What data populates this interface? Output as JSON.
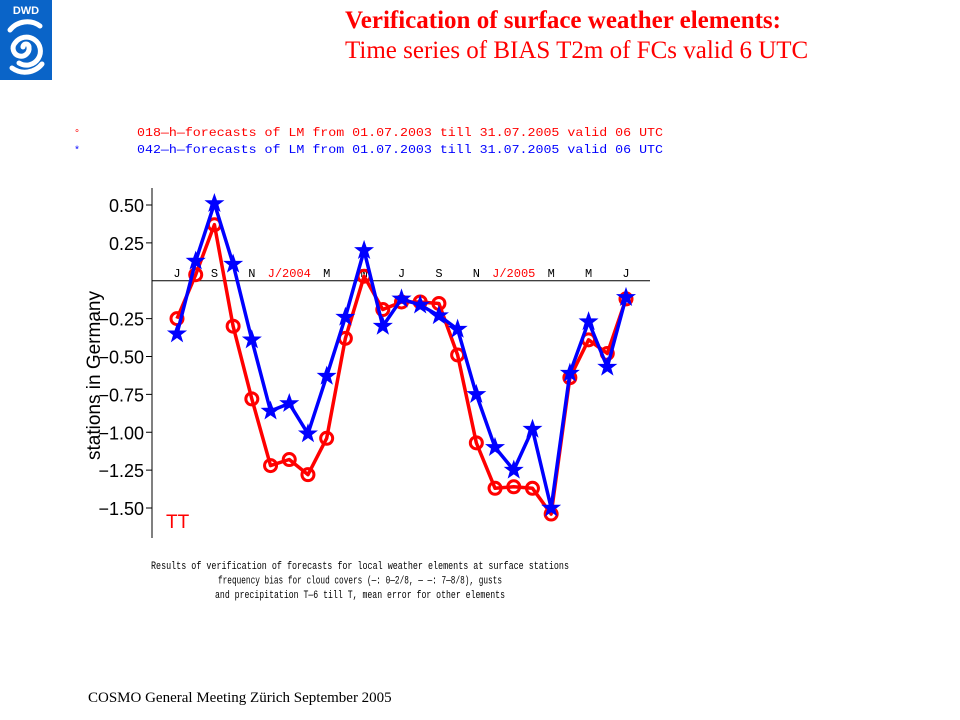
{
  "logo": {
    "text": "DWD"
  },
  "header": {
    "title": "Verification of surface weather elements:",
    "subtitle": "Time series of  BIAS T2m of FCs valid 6 UTC"
  },
  "footer": {
    "text": "COSMO General Meeting  Zürich September 2005"
  },
  "colors": {
    "forecast_018": "#ff0000",
    "forecast_042": "#0000ff",
    "text": "#000000"
  },
  "chart_data": {
    "type": "line",
    "legend": [
      {
        "marker": "°",
        "text": "018—h—forecasts of LM from 01.07.2003 till 31.07.2005 valid 06 UTC",
        "color": "#ff0000"
      },
      {
        "marker": "*",
        "text": "042—h—forecasts of LM from 01.07.2003 till 31.07.2005 valid 06 UTC",
        "color": "#0000ff"
      }
    ],
    "ylabel": "stations  in  Germany",
    "element_label": "TT",
    "ylim": [
      -1.65,
      0.55
    ],
    "yticks": [
      0.5,
      0.25,
      -0.25,
      -0.5,
      -0.75,
      -1.0,
      -1.25,
      -1.5
    ],
    "ytick_labels": [
      "0.50",
      "0.25",
      "−0.25",
      "−0.50",
      "−0.75",
      "−1.00",
      "−1.25",
      "−1.50"
    ],
    "xlim": [
      -0.3,
      24.3
    ],
    "month_labels": [
      {
        "x": 0,
        "label": "J",
        "color": "#000000"
      },
      {
        "x": 2,
        "label": "S",
        "color": "#000000"
      },
      {
        "x": 4,
        "label": "N",
        "color": "#000000"
      },
      {
        "x": 6,
        "label": "J/2004",
        "color": "#ff0000"
      },
      {
        "x": 8,
        "label": "M",
        "color": "#000000"
      },
      {
        "x": 10,
        "label": "M",
        "color": "#000000"
      },
      {
        "x": 12,
        "label": "J",
        "color": "#000000"
      },
      {
        "x": 14,
        "label": "S",
        "color": "#000000"
      },
      {
        "x": 16,
        "label": "N",
        "color": "#000000"
      },
      {
        "x": 18,
        "label": "J/2005",
        "color": "#ff0000"
      },
      {
        "x": 20,
        "label": "M",
        "color": "#000000"
      },
      {
        "x": 22,
        "label": "M",
        "color": "#000000"
      },
      {
        "x": 24,
        "label": "J",
        "color": "#000000"
      }
    ],
    "series": [
      {
        "marker": "circle",
        "color": "#ff0000",
        "x": [
          0,
          1,
          2,
          3,
          4,
          5,
          6,
          7,
          8,
          9,
          10,
          11,
          12,
          13,
          14,
          15,
          16,
          17,
          18,
          19,
          20,
          21,
          22,
          23,
          24
        ],
        "values": [
          -0.25,
          0.04,
          0.37,
          -0.3,
          -0.78,
          -1.22,
          -1.18,
          -1.28,
          -1.04,
          -0.38,
          0.03,
          -0.19,
          -0.14,
          -0.14,
          -0.15,
          -0.49,
          -1.07,
          -1.37,
          -1.36,
          -1.37,
          -1.54,
          -0.64,
          -0.39,
          -0.48,
          -0.12
        ]
      },
      {
        "marker": "star",
        "color": "#0000ff",
        "x": [
          0,
          1,
          2,
          3,
          4,
          5,
          6,
          7,
          8,
          9,
          10,
          11,
          12,
          13,
          14,
          15,
          16,
          17,
          18,
          19,
          20,
          21,
          22,
          23,
          24
        ],
        "values": [
          -0.35,
          0.13,
          0.51,
          0.11,
          -0.39,
          -0.86,
          -0.81,
          -1.01,
          -0.63,
          -0.24,
          0.2,
          -0.3,
          -0.12,
          -0.16,
          -0.23,
          -0.32,
          -0.75,
          -1.1,
          -1.25,
          -0.98,
          -1.5,
          -0.61,
          -0.27,
          -0.57,
          -0.11
        ]
      }
    ],
    "caption": [
      "Results of verification of forecasts for local weather elements at surface stations",
      "frequency bias for cloud covers (—: 0—2/8, — —: 7—8/8), gusts",
      "and precipitation T—6 till T, mean error for other elements"
    ]
  }
}
